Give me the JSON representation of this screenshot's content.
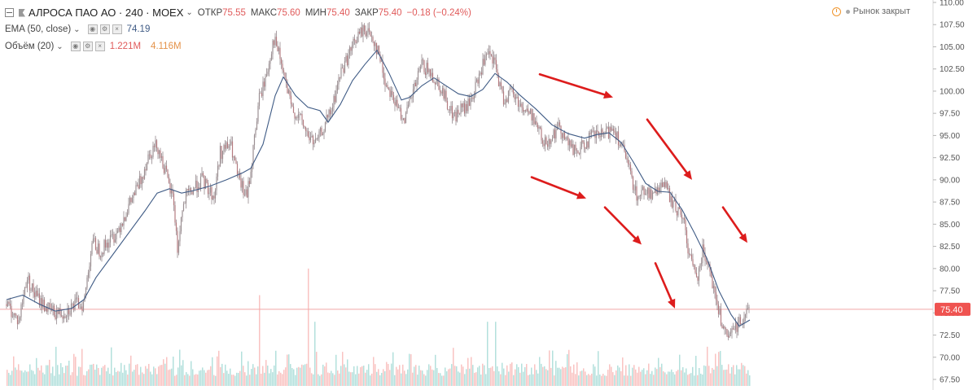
{
  "header": {
    "symbol": "АЛРОСА ПАО АО · 240 · MOEX",
    "open_label": "ОТКР",
    "open_value": "75.55",
    "high_label": "МАКС",
    "high_value": "75.60",
    "low_label": "МИН",
    "low_value": "75.40",
    "close_label": "ЗАКР",
    "close_value": "75.40",
    "change": "−0.18 (−0.24%)"
  },
  "market_status": "Рынок закрыт",
  "indicators": {
    "ema_label": "EMA (50, close)",
    "ema_value": "74.19",
    "volume_label": "Объём (20)",
    "volume_value": "1.221M",
    "volume_avg": "4.116M"
  },
  "price_axis": {
    "ticks": [
      "110.00",
      "107.50",
      "105.00",
      "102.50",
      "100.00",
      "97.50",
      "95.00",
      "92.50",
      "90.00",
      "87.50",
      "85.00",
      "82.50",
      "80.00",
      "77.50",
      "75.00",
      "72.50",
      "70.00",
      "67.50"
    ],
    "last_price": "75.40"
  },
  "colors": {
    "up": "#26a69a",
    "down": "#ef5350",
    "candle": "#8a7b80",
    "ema": "#3f5b85",
    "arrow": "#dd1c1c",
    "last_line": "#f1a8a8",
    "price_badge": "#ef5350"
  },
  "icons": [
    "collapse-icon",
    "flag-icon",
    "chevron-down-icon",
    "clock-icon",
    "eye-icon",
    "gear-icon",
    "close-icon"
  ],
  "chart_data": {
    "type": "candlestick",
    "y_range": [
      67.5,
      110
    ],
    "y_label_side": "right",
    "grid": false,
    "price_path": [
      [
        0,
        76
      ],
      [
        15,
        74
      ],
      [
        25,
        79
      ],
      [
        35,
        77
      ],
      [
        50,
        75.5
      ],
      [
        60,
        75
      ],
      [
        70,
        75
      ],
      [
        85,
        76
      ],
      [
        95,
        76
      ],
      [
        105,
        83
      ],
      [
        115,
        82
      ],
      [
        125,
        83
      ],
      [
        135,
        84
      ],
      [
        150,
        87
      ],
      [
        165,
        90
      ],
      [
        175,
        93
      ],
      [
        185,
        94
      ],
      [
        195,
        91
      ],
      [
        200,
        89
      ],
      [
        205,
        88
      ],
      [
        210,
        82
      ],
      [
        215,
        86
      ],
      [
        220,
        88
      ],
      [
        230,
        89
      ],
      [
        240,
        90
      ],
      [
        255,
        88
      ],
      [
        262,
        93
      ],
      [
        275,
        94
      ],
      [
        285,
        90
      ],
      [
        295,
        88
      ],
      [
        300,
        91
      ],
      [
        310,
        99
      ],
      [
        320,
        102
      ],
      [
        328,
        106
      ],
      [
        335,
        104
      ],
      [
        345,
        100
      ],
      [
        350,
        98
      ],
      [
        360,
        97
      ],
      [
        370,
        95
      ],
      [
        380,
        94
      ],
      [
        390,
        96
      ],
      [
        400,
        98
      ],
      [
        410,
        102
      ],
      [
        420,
        104
      ],
      [
        430,
        106
      ],
      [
        440,
        107
      ],
      [
        450,
        106
      ],
      [
        458,
        104
      ],
      [
        465,
        101
      ],
      [
        472,
        100
      ],
      [
        480,
        98
      ],
      [
        490,
        97
      ],
      [
        500,
        100
      ],
      [
        510,
        103
      ],
      [
        520,
        102
      ],
      [
        530,
        101
      ],
      [
        540,
        99
      ],
      [
        550,
        97
      ],
      [
        558,
        98
      ],
      [
        565,
        98
      ],
      [
        575,
        100
      ],
      [
        585,
        103
      ],
      [
        592,
        104
      ],
      [
        600,
        103
      ],
      [
        610,
        99
      ],
      [
        620,
        100
      ],
      [
        635,
        98
      ],
      [
        648,
        97
      ],
      [
        660,
        94
      ],
      [
        670,
        95
      ],
      [
        680,
        96
      ],
      [
        690,
        94
      ],
      [
        700,
        93
      ],
      [
        710,
        94
      ],
      [
        720,
        95
      ],
      [
        735,
        95
      ],
      [
        745,
        96
      ],
      [
        755,
        94
      ],
      [
        765,
        91
      ],
      [
        775,
        88
      ],
      [
        785,
        89
      ],
      [
        795,
        88
      ],
      [
        805,
        90
      ],
      [
        815,
        88
      ],
      [
        820,
        87
      ],
      [
        830,
        86
      ],
      [
        840,
        81
      ],
      [
        848,
        79
      ],
      [
        855,
        82
      ],
      [
        862,
        81
      ],
      [
        870,
        77
      ],
      [
        878,
        74
      ],
      [
        885,
        72
      ],
      [
        893,
        73
      ],
      [
        900,
        74
      ],
      [
        908,
        75
      ],
      [
        913,
        75.4
      ]
    ],
    "ema_path": [
      [
        0,
        76.5
      ],
      [
        20,
        77
      ],
      [
        40,
        76
      ],
      [
        60,
        75.2
      ],
      [
        80,
        75.5
      ],
      [
        95,
        76.5
      ],
      [
        110,
        79
      ],
      [
        130,
        81.5
      ],
      [
        150,
        84
      ],
      [
        170,
        86.5
      ],
      [
        185,
        88.5
      ],
      [
        200,
        89
      ],
      [
        215,
        88.5
      ],
      [
        230,
        88.8
      ],
      [
        250,
        89.3
      ],
      [
        270,
        90
      ],
      [
        290,
        90.8
      ],
      [
        300,
        91.3
      ],
      [
        315,
        94
      ],
      [
        330,
        99.5
      ],
      [
        340,
        101.6
      ],
      [
        355,
        99.5
      ],
      [
        370,
        98.2
      ],
      [
        385,
        97.8
      ],
      [
        395,
        96.5
      ],
      [
        410,
        98.5
      ],
      [
        425,
        101.2
      ],
      [
        440,
        103
      ],
      [
        455,
        104.6
      ],
      [
        470,
        102
      ],
      [
        485,
        99
      ],
      [
        495,
        99.3
      ],
      [
        510,
        100.6
      ],
      [
        525,
        101.5
      ],
      [
        540,
        100.6
      ],
      [
        555,
        99.7
      ],
      [
        570,
        99.4
      ],
      [
        585,
        100.2
      ],
      [
        600,
        102
      ],
      [
        615,
        101
      ],
      [
        630,
        99.6
      ],
      [
        650,
        98
      ],
      [
        670,
        96.2
      ],
      [
        690,
        95.2
      ],
      [
        710,
        94.7
      ],
      [
        725,
        95.1
      ],
      [
        740,
        95.3
      ],
      [
        755,
        94.2
      ],
      [
        770,
        92
      ],
      [
        785,
        89.6
      ],
      [
        800,
        88.7
      ],
      [
        815,
        88.6
      ],
      [
        830,
        86.6
      ],
      [
        845,
        84
      ],
      [
        860,
        81.2
      ],
      [
        875,
        77.5
      ],
      [
        890,
        74.8
      ],
      [
        900,
        73.5
      ],
      [
        913,
        74.2
      ]
    ],
    "annotations": [
      {
        "type": "arrow",
        "from": [
          655,
          101.9
        ],
        "to": [
          745,
          99.3
        ]
      },
      {
        "type": "arrow",
        "from": [
          787,
          96.8
        ],
        "to": [
          842,
          90.0
        ]
      },
      {
        "type": "arrow",
        "from": [
          645,
          90.3
        ],
        "to": [
          712,
          87.9
        ]
      },
      {
        "type": "arrow",
        "from": [
          735,
          86.9
        ],
        "to": [
          780,
          82.7
        ]
      },
      {
        "type": "arrow",
        "from": [
          797,
          80.6
        ],
        "to": [
          821,
          75.5
        ]
      },
      {
        "type": "arrow",
        "from": [
          880,
          86.9
        ],
        "to": [
          910,
          82.9
        ]
      }
    ],
    "volume": {
      "baseline": 67.5,
      "spikes": [
        [
          310,
          77
        ],
        [
          370,
          80
        ],
        [
          378,
          74
        ],
        [
          590,
          74
        ],
        [
          600,
          74
        ],
        [
          797,
          73
        ]
      ]
    }
  }
}
